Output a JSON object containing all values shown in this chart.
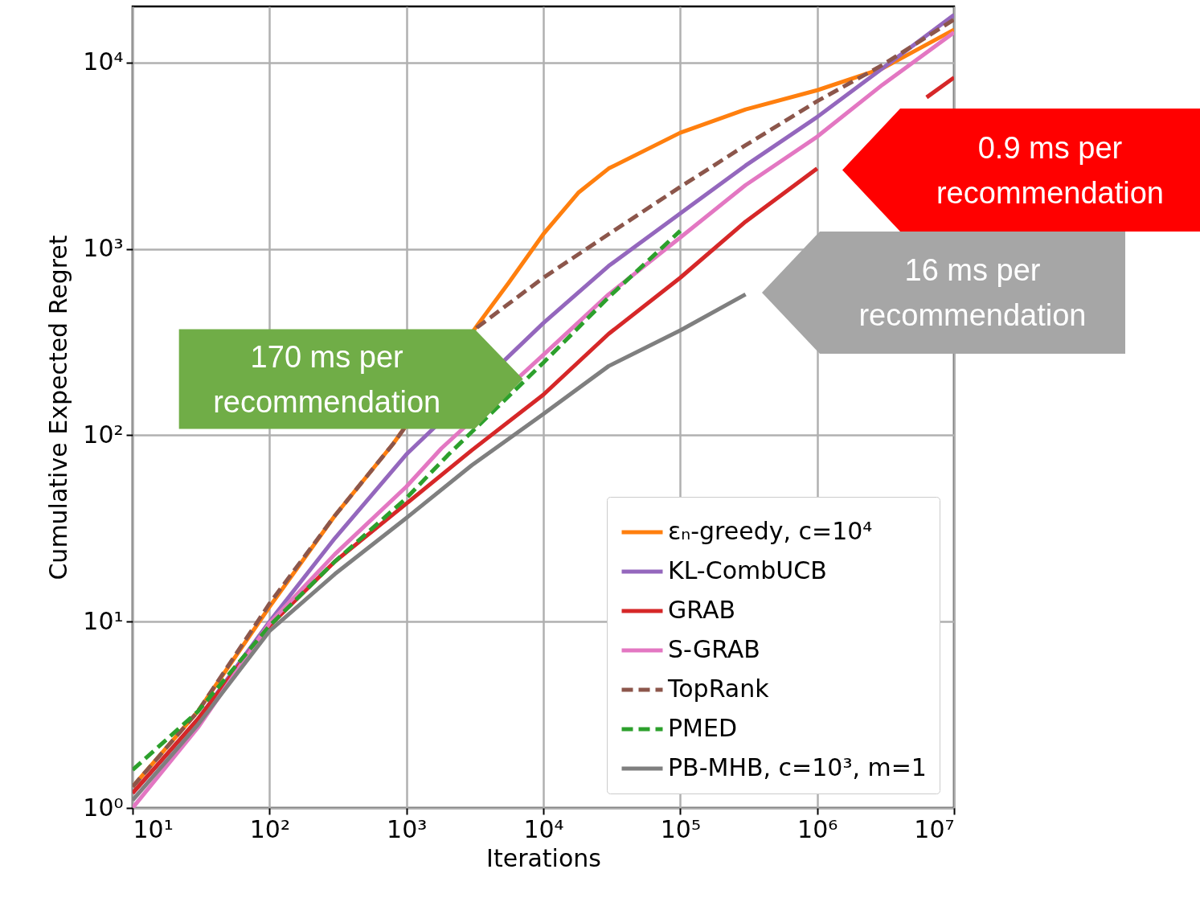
{
  "chart_data": {
    "type": "line",
    "xlabel": "Iterations",
    "ylabel": "Cumulative Expected Regret",
    "log": "xy",
    "grid": true,
    "legend": "bottom right",
    "xlim": [
      10,
      10000000
    ],
    "ylim": [
      1,
      20000
    ],
    "xticks": [
      {
        "value": 10,
        "label": "10¹"
      },
      {
        "value": 100,
        "label": "10²"
      },
      {
        "value": 1000,
        "label": "10³"
      },
      {
        "value": 10000,
        "label": "10⁴"
      },
      {
        "value": 100000,
        "label": "10⁵"
      },
      {
        "value": 1000000,
        "label": "10⁶"
      },
      {
        "value": 10000000,
        "label": "10⁷"
      }
    ],
    "yticks": [
      {
        "value": 1,
        "label": "10⁰"
      },
      {
        "value": 10,
        "label": "10¹"
      },
      {
        "value": 100,
        "label": "10²"
      },
      {
        "value": 1000,
        "label": "10³"
      },
      {
        "value": 10000,
        "label": "10⁴"
      }
    ],
    "series": [
      {
        "name": "εₙ-greedy, c=10⁴",
        "color": "#ff7f0e",
        "line_style": "solid",
        "x": [
          10,
          30,
          100,
          300,
          800,
          3300,
          5600,
          10000,
          18000,
          30000,
          100000,
          300000,
          1000000,
          3000000,
          10000000
        ],
        "values": [
          1.3,
          3.3,
          12,
          37,
          90,
          390,
          660,
          1200,
          2000,
          2700,
          4200,
          5600,
          7100,
          9300,
          15000
        ]
      },
      {
        "name": "KL-CombUCB",
        "color": "#9467bd",
        "line_style": "solid",
        "x": [
          10,
          30,
          100,
          300,
          1000,
          10000,
          30000,
          100000,
          300000,
          1000000,
          3000000,
          10000000
        ],
        "values": [
          1.2,
          3,
          10,
          28,
          79,
          400,
          810,
          1550,
          2800,
          5100,
          9300,
          18000
        ]
      },
      {
        "name": "GRAB",
        "color": "#d62728",
        "line_style": "solid",
        "x": [
          10,
          30,
          100,
          300,
          1000,
          3000,
          10000,
          30000,
          100000,
          300000,
          1000000,
          1600000,
          6300000,
          10000000
        ],
        "values": [
          1.2,
          3,
          9.5,
          21,
          43,
          83,
          165,
          350,
          700,
          1400,
          2700,
          null,
          6500,
          8300
        ]
      },
      {
        "name": "S-GRAB",
        "color": "#e377c2",
        "line_style": "solid",
        "x": [
          10,
          30,
          100,
          300,
          1000,
          1800,
          10000,
          30000,
          100000,
          300000,
          1000000,
          3000000,
          10000000
        ],
        "values": [
          1,
          2.7,
          9.8,
          23,
          53,
          85,
          270,
          570,
          1150,
          2200,
          4000,
          7600,
          14500
        ]
      },
      {
        "name": "TopRank",
        "color": "#8c564b",
        "line_style": "dashed",
        "x": [
          10,
          30,
          100,
          300,
          800,
          3300,
          10000,
          30000,
          100000,
          300000,
          1000000,
          3000000,
          10000000
        ],
        "values": [
          1.3,
          3.3,
          12.5,
          37,
          90,
          380,
          700,
          1200,
          2150,
          3600,
          6200,
          9700,
          17000
        ]
      },
      {
        "name": "PMED",
        "color": "#2ca02c",
        "line_style": "dashed",
        "x": [
          10,
          30,
          100,
          300,
          1000,
          2000,
          10000,
          30000,
          100000
        ],
        "values": [
          1.6,
          3.3,
          9.5,
          21,
          46,
          78,
          245,
          550,
          1250
        ]
      },
      {
        "name": "PB-MHB, c=10³, m=1",
        "color": "#7f7f7f",
        "line_style": "solid",
        "x": [
          10,
          30,
          100,
          300,
          1000,
          3000,
          10000,
          30000,
          100000,
          300000
        ],
        "values": [
          1.1,
          2.8,
          8.9,
          18,
          36,
          69,
          130,
          235,
          365,
          570
        ]
      }
    ],
    "annotations": [
      {
        "text": "170 ms per recommendation",
        "x": 7100,
        "y": 200
      },
      "0.9 ms per recommendation",
      "16 ms per recommendation"
    ]
  }
}
